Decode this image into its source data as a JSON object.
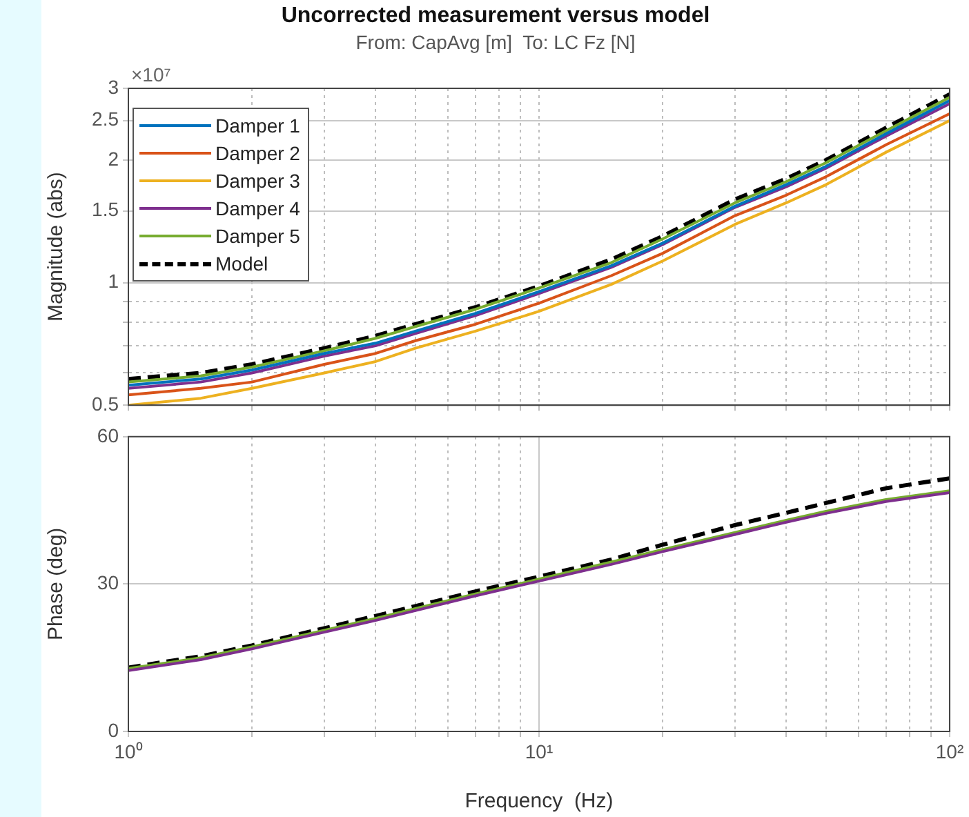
{
  "chart_data": [
    {
      "type": "line",
      "title": "Uncorrected measurement versus model",
      "subtitle": "From: CapAvg [m]  To: LC Fz [N]",
      "ylabel": "Magnitude (abs)",
      "annotations": [
        "×10⁷"
      ],
      "log": "xy",
      "grid": true,
      "legend": "top left",
      "tick_labels": "y",
      "marker": "none",
      "line_style": "solid",
      "x": [
        1,
        1.5,
        2,
        3,
        4,
        5,
        7,
        10,
        15,
        20,
        30,
        40,
        50,
        70,
        100
      ],
      "xlim": [
        1,
        100
      ],
      "xticks": [
        {
          "value": 1,
          "label": null
        },
        {
          "value": 2,
          "label": null
        },
        {
          "value": 3,
          "label": null
        },
        {
          "value": 4,
          "label": null
        },
        {
          "value": 5,
          "label": null
        },
        {
          "value": 6,
          "label": null
        },
        {
          "value": 7,
          "label": null
        },
        {
          "value": 8,
          "label": null
        },
        {
          "value": 9,
          "label": null
        },
        {
          "value": 10,
          "label": null
        },
        {
          "value": 20,
          "label": null
        },
        {
          "value": 30,
          "label": null
        },
        {
          "value": 40,
          "label": null
        },
        {
          "value": 50,
          "label": null
        },
        {
          "value": 60,
          "label": null
        },
        {
          "value": 70,
          "label": null
        },
        {
          "value": 80,
          "label": null
        },
        {
          "value": 90,
          "label": null
        },
        {
          "value": 100,
          "label": null
        }
      ],
      "ylim": [
        0.5,
        3
      ],
      "yticks": [
        0.5,
        {
          "value": 0.6,
          "label": null
        },
        {
          "value": 0.7,
          "label": null
        },
        {
          "value": 0.8,
          "label": null
        },
        {
          "value": 0.9,
          "label": null
        },
        1,
        1.5,
        2,
        2.5,
        3
      ],
      "series": [
        {
          "name": "Damper 1",
          "color": "#0072bd",
          "values": [
            0.56,
            0.58,
            0.61,
            0.67,
            0.71,
            0.76,
            0.84,
            0.95,
            1.1,
            1.25,
            1.54,
            1.74,
            1.93,
            2.32,
            2.8
          ]
        },
        {
          "name": "Damper 2",
          "color": "#d95319",
          "values": [
            0.53,
            0.55,
            0.57,
            0.63,
            0.67,
            0.72,
            0.79,
            0.89,
            1.04,
            1.18,
            1.46,
            1.64,
            1.82,
            2.18,
            2.6
          ]
        },
        {
          "name": "Damper 3",
          "color": "#edb120",
          "values": [
            0.5,
            0.52,
            0.55,
            0.6,
            0.64,
            0.69,
            0.76,
            0.85,
            0.99,
            1.13,
            1.39,
            1.57,
            1.74,
            2.09,
            2.5
          ]
        },
        {
          "name": "Damper 4",
          "color": "#7e2f8e",
          "values": [
            0.55,
            0.57,
            0.6,
            0.66,
            0.7,
            0.75,
            0.83,
            0.94,
            1.09,
            1.24,
            1.53,
            1.72,
            1.91,
            2.29,
            2.75
          ]
        },
        {
          "name": "Damper 5",
          "color": "#77ac30",
          "values": [
            0.57,
            0.59,
            0.62,
            0.68,
            0.73,
            0.78,
            0.86,
            0.97,
            1.12,
            1.28,
            1.57,
            1.77,
            1.97,
            2.36,
            2.85
          ]
        },
        {
          "name": "Model",
          "color": "#000000",
          "line_style": "dashed",
          "values": [
            0.58,
            0.6,
            0.63,
            0.69,
            0.74,
            0.79,
            0.87,
            0.98,
            1.14,
            1.3,
            1.6,
            1.8,
            2.0,
            2.4,
            2.9
          ]
        }
      ]
    },
    {
      "type": "line",
      "xlabel": "Frequency  (Hz)",
      "ylabel": "Phase (deg)",
      "log": "x",
      "grid": true,
      "marker": "none",
      "line_style": "solid",
      "x": [
        1,
        1.5,
        2,
        3,
        4,
        5,
        7,
        10,
        15,
        20,
        30,
        40,
        50,
        70,
        100
      ],
      "xlim": [
        1,
        100
      ],
      "xticks": [
        {
          "value": 1,
          "label": "10⁰"
        },
        {
          "value": 2,
          "label": null
        },
        {
          "value": 3,
          "label": null
        },
        {
          "value": 4,
          "label": null
        },
        {
          "value": 5,
          "label": null
        },
        {
          "value": 6,
          "label": null
        },
        {
          "value": 7,
          "label": null
        },
        {
          "value": 8,
          "label": null
        },
        {
          "value": 9,
          "label": null
        },
        {
          "value": 10,
          "label": "10¹"
        },
        {
          "value": 20,
          "label": null
        },
        {
          "value": 30,
          "label": null
        },
        {
          "value": 40,
          "label": null
        },
        {
          "value": 50,
          "label": null
        },
        {
          "value": 60,
          "label": null
        },
        {
          "value": 70,
          "label": null
        },
        {
          "value": 80,
          "label": null
        },
        {
          "value": 90,
          "label": null
        },
        {
          "value": 100,
          "label": "10²"
        }
      ],
      "ylim": [
        0,
        60
      ],
      "yticks": [
        0,
        30,
        60
      ],
      "series": [
        {
          "color": "#7e2f8e",
          "values": [
            12.4,
            14.6,
            16.8,
            20.2,
            22.6,
            24.6,
            27.6,
            30.6,
            34,
            36.6,
            40.1,
            42.6,
            44.4,
            46.8,
            48.6
          ]
        },
        {
          "color": "#77ac30",
          "values": [
            12.8,
            15,
            17.2,
            20.6,
            23,
            25,
            28,
            31,
            34.5,
            37,
            40.5,
            43,
            44.8,
            47.2,
            49
          ]
        },
        {
          "color": "#000000",
          "line_style": "dashed",
          "values": [
            13,
            15.3,
            17.5,
            21,
            23.5,
            25.5,
            28.5,
            31.5,
            35,
            38,
            42,
            44.5,
            46.5,
            49.5,
            51.5
          ]
        }
      ]
    }
  ]
}
